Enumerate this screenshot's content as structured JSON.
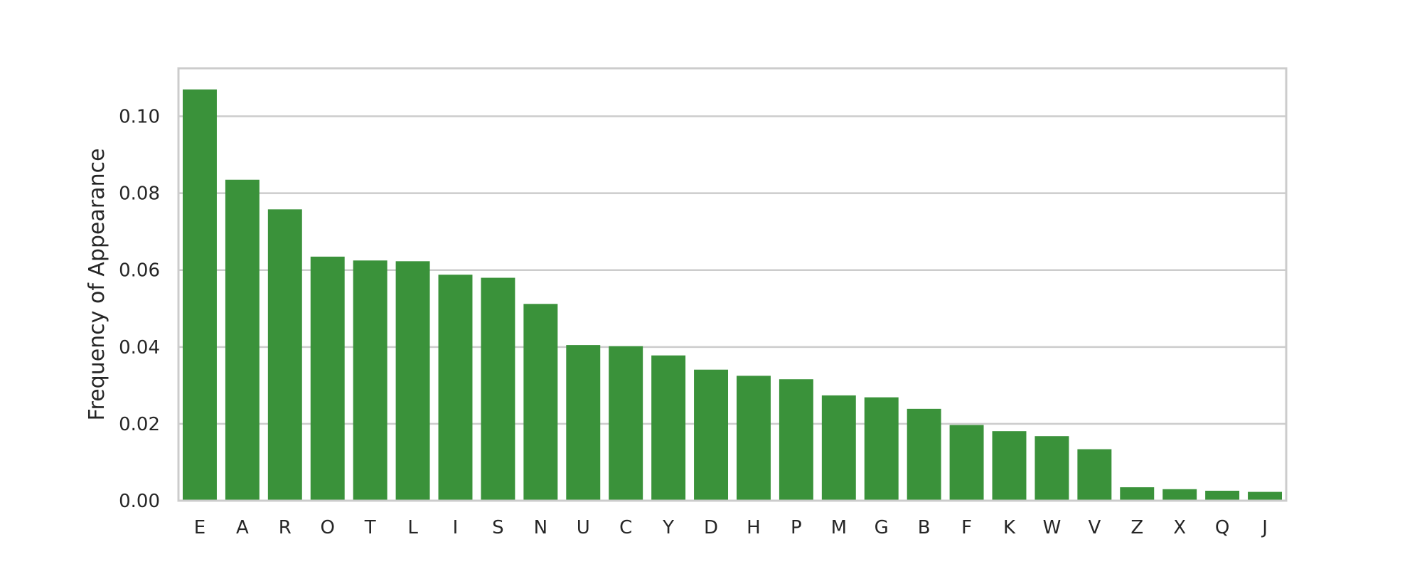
{
  "chart_data": {
    "type": "bar",
    "title": "",
    "xlabel": "",
    "ylabel": "Frequency of Appearance",
    "categories": [
      "E",
      "A",
      "R",
      "O",
      "T",
      "L",
      "I",
      "S",
      "N",
      "U",
      "C",
      "Y",
      "D",
      "H",
      "P",
      "M",
      "G",
      "B",
      "F",
      "K",
      "W",
      "V",
      "Z",
      "X",
      "Q",
      "J"
    ],
    "values": [
      0.107,
      0.0835,
      0.0758,
      0.0635,
      0.0625,
      0.0623,
      0.0588,
      0.058,
      0.0512,
      0.0405,
      0.0402,
      0.0378,
      0.0341,
      0.0325,
      0.0316,
      0.0274,
      0.0269,
      0.0239,
      0.0197,
      0.0181,
      0.0168,
      0.0134,
      0.0035,
      0.003,
      0.0026,
      0.0023
    ],
    "ylim": [
      0,
      0.1125
    ],
    "yticks": [
      "0.00",
      "0.02",
      "0.04",
      "0.06",
      "0.08",
      "0.10"
    ],
    "grid": "horizontal",
    "bar_color": "#3a923a",
    "grid_color": "#cccccc",
    "frame_color": "#cccccc",
    "text_color": "#262626"
  }
}
